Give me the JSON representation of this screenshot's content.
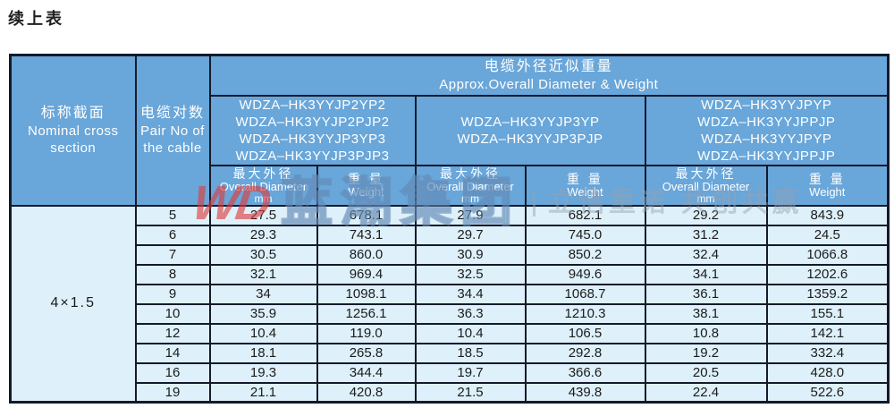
{
  "page": {
    "title": "续上表"
  },
  "colors": {
    "header_bg": "#69a6d9",
    "cell_bg": "#def0f9",
    "border": "#141a2b",
    "header_text": "#ffffff",
    "cell_text": "#1b1b1b",
    "watermark_red": "#df3a3a"
  },
  "table": {
    "nominal": {
      "zh": "标称截面",
      "en1": "Nominal cross",
      "en2": "section",
      "value": "4×1.5"
    },
    "pair": {
      "zh": "电缆对数",
      "en1": "Pair No of",
      "en2": "the cable"
    },
    "approx": {
      "zh": "电缆外径近似重量",
      "en": "Approx.Overall Diameter & Weight"
    },
    "groups": [
      {
        "models": [
          "WDZA–HK3YYJP2YP2",
          "WDZA–HK3YYJP2PJP2",
          "WDZA–HK3YYJP3YP3",
          "WDZA–HK3YYJP3PJP3"
        ]
      },
      {
        "models": [
          "WDZA–HK3YYJP3YP",
          "WDZA–HK3YYJP3PJP"
        ]
      },
      {
        "models": [
          "WDZA–HK3YYJPYP",
          "WDZA–HK3YYJPPJP",
          "WDZA–HK3YYJPYP",
          "WDZA–HK3YYJPPJP"
        ]
      }
    ],
    "subheader": {
      "diameter_zh": "最大外径",
      "diameter_en": "Overall Diameter",
      "diameter_unit": "mm",
      "weight_zh": "重 量",
      "weight_en": "Weight"
    },
    "rows": [
      {
        "pair": "5",
        "values": [
          "27.5",
          "678.1",
          "27.9",
          "682.1",
          "29.2",
          "843.9"
        ]
      },
      {
        "pair": "6",
        "values": [
          "29.3",
          "743.1",
          "29.7",
          "745.0",
          "31.2",
          "24.5"
        ]
      },
      {
        "pair": "7",
        "values": [
          "30.5",
          "860.0",
          "30.9",
          "850.2",
          "32.4",
          "1066.8"
        ]
      },
      {
        "pair": "8",
        "values": [
          "32.1",
          "969.4",
          "32.5",
          "949.6",
          "34.1",
          "1202.6"
        ]
      },
      {
        "pair": "9",
        "values": [
          "34",
          "1098.1",
          "34.4",
          "1068.7",
          "36.1",
          "1359.2"
        ]
      },
      {
        "pair": "10",
        "values": [
          "35.9",
          "1256.1",
          "36.3",
          "1210.3",
          "38.1",
          "155.1"
        ]
      },
      {
        "pair": "12",
        "values": [
          "10.4",
          "119.0",
          "10.4",
          "106.5",
          "10.8",
          "142.1"
        ]
      },
      {
        "pair": "14",
        "values": [
          "18.1",
          "265.8",
          "18.5",
          "292.8",
          "19.2",
          "332.4"
        ]
      },
      {
        "pair": "16",
        "values": [
          "19.3",
          "344.4",
          "19.7",
          "366.6",
          "20.5",
          "428.0"
        ]
      },
      {
        "pair": "19",
        "values": [
          "21.1",
          "420.8",
          "21.5",
          "439.8",
          "22.4",
          "522.6"
        ]
      }
    ]
  },
  "watermark": {
    "logo": "WD",
    "brand": "蓝潮集团",
    "slogan": "立信重诺 共创共赢"
  }
}
